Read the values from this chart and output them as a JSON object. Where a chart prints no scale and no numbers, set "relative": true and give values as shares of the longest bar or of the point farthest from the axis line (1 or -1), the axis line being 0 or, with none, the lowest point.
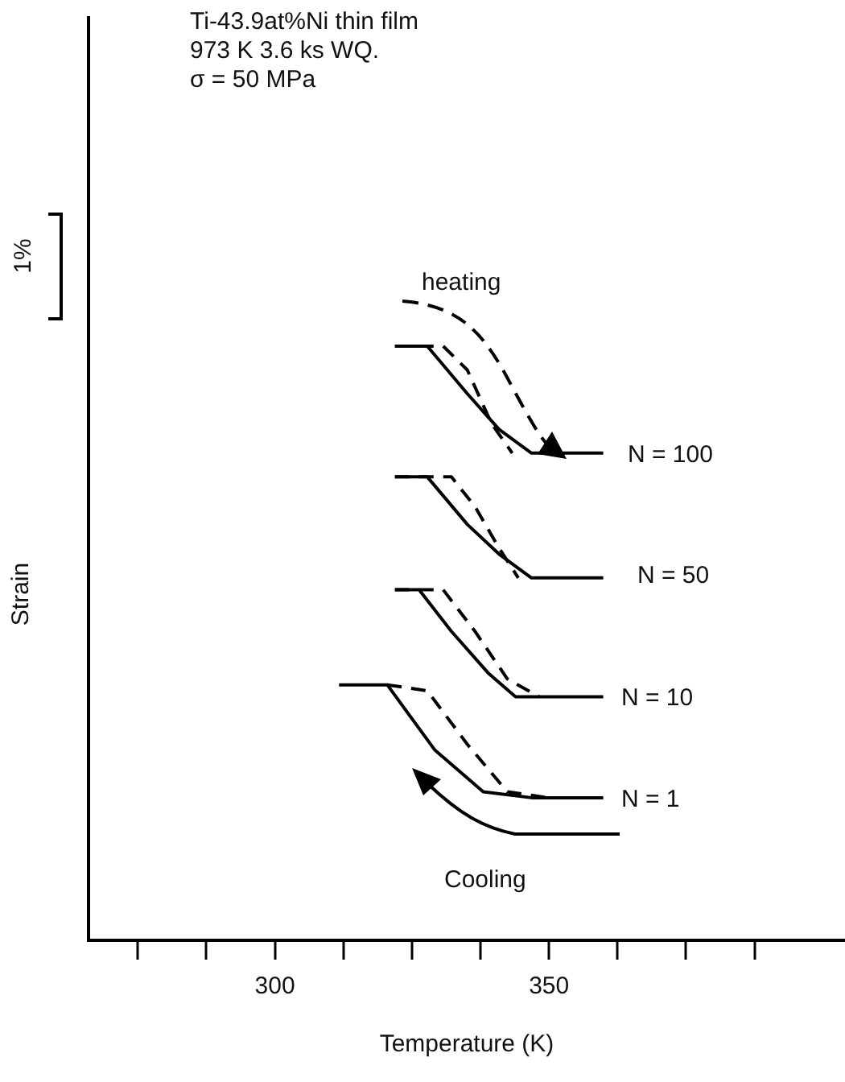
{
  "chart_data": {
    "type": "line",
    "title": "Ti-43.9at%Ni thin film",
    "subtitle": "973 K 3.6 ks WQ.",
    "xlabel": "Temperature (K)",
    "ylabel": "Strain",
    "relative": true,
    "xlim": [
      266,
      404
    ],
    "xticks": [
      {
        "value": 275,
        "label": null
      },
      {
        "value": 287.5,
        "label": null
      },
      300,
      {
        "value": 312.5,
        "label": null
      },
      {
        "value": 325,
        "label": null
      },
      {
        "value": 337.5,
        "label": null
      },
      350,
      {
        "value": 362.5,
        "label": null
      },
      {
        "value": 375,
        "label": null
      },
      {
        "value": 387.5,
        "label": null
      }
    ],
    "grid": false,
    "legend": false,
    "marker": "none",
    "series": [
      {
        "color": "#000000",
        "line_style": "solid",
        "x": [
          321.9,
          327.8,
          335.1,
          340.9,
          346.8,
          359.9
        ],
        "values": [
          1.0,
          1.0,
          0.92,
          0.86,
          0.82,
          0.82
        ]
      },
      {
        "color": "#000000",
        "line_style": "dashed",
        "x": [
          321.9,
          330.7,
          335.1,
          339.5,
          343.3
        ],
        "values": [
          1.0,
          1.0,
          0.96,
          0.87,
          0.82
        ]
      },
      {
        "color": "#000000",
        "line_style": "solid",
        "x": [
          321.9,
          327.8,
          335.1,
          340.9,
          346.8,
          359.9
        ],
        "values": [
          0.78,
          0.78,
          0.7,
          0.65,
          0.61,
          0.61
        ]
      },
      {
        "color": "#000000",
        "line_style": "dashed",
        "x": [
          321.9,
          332.2,
          336.5,
          340.9,
          344.4
        ],
        "values": [
          0.78,
          0.78,
          0.73,
          0.66,
          0.61
        ]
      },
      {
        "color": "#000000",
        "line_style": "solid",
        "x": [
          321.9,
          326.3,
          332.2,
          338.9,
          343.9,
          359.9
        ],
        "values": [
          0.59,
          0.59,
          0.52,
          0.45,
          0.41,
          0.41
        ]
      },
      {
        "color": "#000000",
        "line_style": "dashed",
        "x": [
          321.9,
          330.7,
          336.5,
          342.4,
          348.2
        ],
        "values": [
          0.59,
          0.59,
          0.52,
          0.44,
          0.41
        ]
      },
      {
        "color": "#000000",
        "line_style": "solid",
        "x": [
          311.7,
          320.5,
          329.2,
          338.0,
          346.8,
          359.9
        ],
        "values": [
          0.43,
          0.43,
          0.32,
          0.25,
          0.24,
          0.24
        ]
      },
      {
        "color": "#000000",
        "line_style": "dashed",
        "x": [
          320.5,
          327.8,
          335.1,
          342.4,
          349.7
        ],
        "values": [
          0.43,
          0.42,
          0.33,
          0.25,
          0.24
        ]
      }
    ],
    "annotations": [
      "σ = 50 MPa",
      "1%",
      "heating",
      "Cooling",
      "N = 100",
      "N = 50",
      "N = 10",
      "N = 1"
    ]
  }
}
